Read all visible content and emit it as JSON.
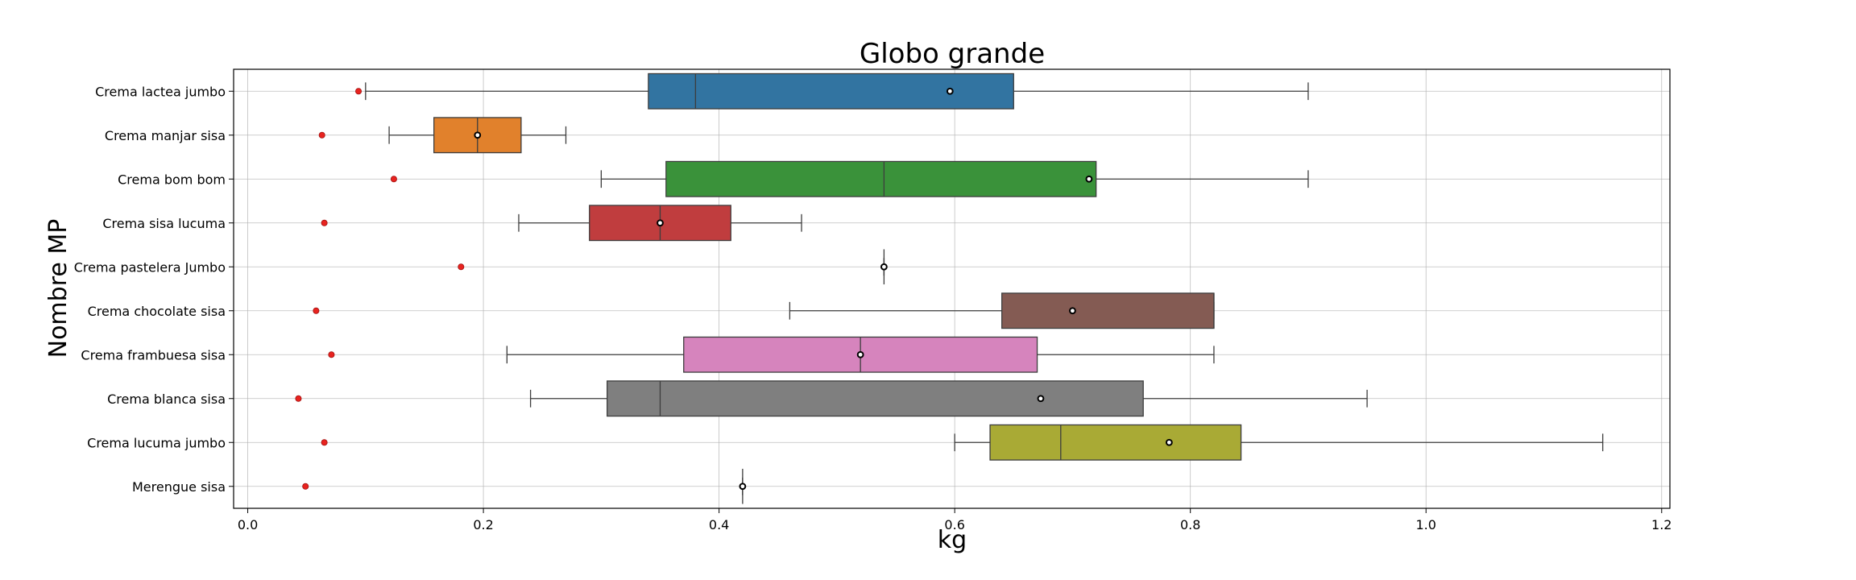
{
  "chart_data": {
    "type": "boxplot",
    "title": "Globo grande",
    "xlabel": "kg",
    "ylabel": "Nombre MP",
    "xlim": [
      -0.012,
      1.207
    ],
    "xticks": [
      0.0,
      0.2,
      0.4,
      0.6,
      0.8,
      1.0,
      1.2
    ],
    "xtick_labels": [
      "0.0",
      "0.2",
      "0.4",
      "0.6",
      "0.8",
      "1.0",
      "1.2"
    ],
    "grid": true,
    "categories": [
      "Crema lactea jumbo",
      "Crema manjar sisa",
      "Crema bom bom",
      "Crema sisa lucuma",
      "Crema pastelera Jumbo",
      "Crema chocolate sisa",
      "Crema frambuesa sisa",
      "Crema blanca sisa",
      "Crema lucuma jumbo",
      "Merengue sisa"
    ],
    "boxes": [
      {
        "whisker_low": 0.1,
        "q1": 0.34,
        "median": 0.38,
        "q3": 0.65,
        "whisker_high": 0.9,
        "mean": 0.596,
        "red_point": 0.094,
        "color": "#3274a1"
      },
      {
        "whisker_low": 0.12,
        "q1": 0.158,
        "median": 0.195,
        "q3": 0.232,
        "whisker_high": 0.27,
        "mean": 0.195,
        "red_point": 0.063,
        "color": "#e1812c"
      },
      {
        "whisker_low": 0.3,
        "q1": 0.355,
        "median": 0.54,
        "q3": 0.72,
        "whisker_high": 0.9,
        "mean": 0.714,
        "red_point": 0.124,
        "color": "#3a923a"
      },
      {
        "whisker_low": 0.23,
        "q1": 0.29,
        "median": 0.35,
        "q3": 0.41,
        "whisker_high": 0.47,
        "mean": 0.35,
        "red_point": 0.065,
        "color": "#c03d3e"
      },
      {
        "whisker_low": 0.54,
        "q1": 0.54,
        "median": 0.54,
        "q3": 0.54,
        "whisker_high": 0.54,
        "mean": 0.54,
        "red_point": 0.181,
        "color": "#9372b2"
      },
      {
        "whisker_low": 0.46,
        "q1": 0.64,
        "median": 0.82,
        "q3": 0.82,
        "whisker_high": 0.82,
        "mean": 0.7,
        "red_point": 0.058,
        "color": "#845b53"
      },
      {
        "whisker_low": 0.22,
        "q1": 0.37,
        "median": 0.52,
        "q3": 0.67,
        "whisker_high": 0.82,
        "mean": 0.52,
        "red_point": 0.071,
        "color": "#d684bd"
      },
      {
        "whisker_low": 0.24,
        "q1": 0.305,
        "median": 0.35,
        "q3": 0.76,
        "whisker_high": 0.95,
        "mean": 0.673,
        "red_point": 0.043,
        "color": "#7f7f7f"
      },
      {
        "whisker_low": 0.6,
        "q1": 0.63,
        "median": 0.69,
        "q3": 0.843,
        "whisker_high": 1.15,
        "mean": 0.782,
        "red_point": 0.065,
        "color": "#a9aa35"
      },
      {
        "whisker_low": 0.42,
        "q1": 0.42,
        "median": 0.42,
        "q3": 0.42,
        "whisker_high": 0.42,
        "mean": 0.42,
        "red_point": 0.049,
        "color": "#2fbcc4"
      }
    ],
    "red_point_color": "#e8231f"
  }
}
